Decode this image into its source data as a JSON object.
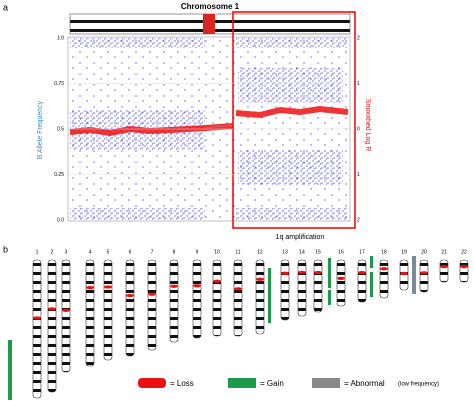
{
  "panel_a": {
    "label": "a",
    "title": "Chromosome 1",
    "left_axis": {
      "label": "B Allele Frequency",
      "ticks": [
        "1.0",
        "0.75",
        "0.5",
        "0.25",
        "0.0"
      ]
    },
    "right_axis": {
      "label": "Smoothed Log R",
      "ticks": [
        "2",
        "1",
        "0",
        "1",
        "2"
      ]
    },
    "annotation": "1q amplification"
  },
  "panel_b": {
    "label": "b",
    "chromosomes": [
      "1",
      "2",
      "3",
      "4",
      "5",
      "6",
      "7",
      "8",
      "9",
      "10",
      "11",
      "12",
      "13",
      "14",
      "15",
      "16",
      "17",
      "18",
      "19",
      "20",
      "21",
      "22"
    ],
    "legend": {
      "loss": "= Loss",
      "gain": "= Gain",
      "abnormal": "= Abnormal",
      "abnormal_note": "(low frequency)"
    }
  }
}
